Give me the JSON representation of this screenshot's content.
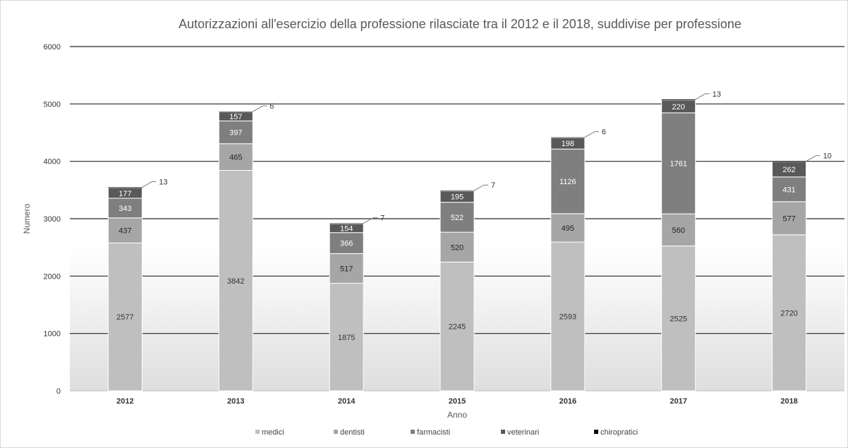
{
  "chart_data": {
    "type": "bar",
    "stacked": true,
    "title": "Autorizzazioni all'esercizio della professione rilasciate tra il 2012 e il 2018, suddivise per professione",
    "xlabel": "Anno",
    "ylabel": "Numero",
    "ylim": [
      0,
      6000
    ],
    "yticks": [
      "0",
      "1000",
      "2000",
      "3000",
      "4000",
      "5000",
      "6000"
    ],
    "grid": true,
    "legend_position": "bottom",
    "categories": [
      "2012",
      "2013",
      "2014",
      "2015",
      "2016",
      "2017",
      "2018"
    ],
    "series": [
      {
        "name": "medici",
        "color": "#bfbfbf",
        "label_color": "#333333",
        "values": [
          2577,
          3842,
          1875,
          2245,
          2593,
          2525,
          2720
        ]
      },
      {
        "name": "dentisti",
        "color": "#a6a6a6",
        "label_color": "#222222",
        "values": [
          437,
          465,
          517,
          520,
          495,
          560,
          577
        ]
      },
      {
        "name": "farmacisti",
        "color": "#7f7f7f",
        "label_color": "#ffffff",
        "values": [
          343,
          397,
          366,
          522,
          1126,
          1761,
          431
        ]
      },
      {
        "name": "veterinari",
        "color": "#595959",
        "label_color": "#ffffff",
        "values": [
          177,
          157,
          154,
          195,
          198,
          220,
          262
        ]
      },
      {
        "name": "chiropratici",
        "color": "#0d0d0d",
        "label_color": "#333333",
        "values": [
          13,
          6,
          7,
          7,
          6,
          13,
          10
        ]
      }
    ]
  }
}
